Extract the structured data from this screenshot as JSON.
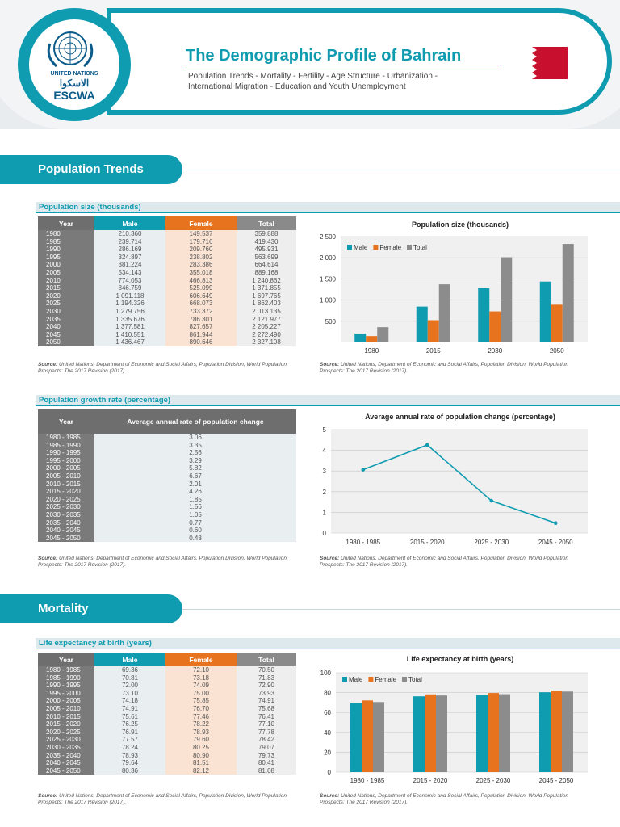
{
  "header": {
    "title": "The Demographic Profile of Bahrain",
    "subtitle": "Population Trends - Mortality - Fertility - Age Structure - Urbanization - International Migration - Education and Youth Unemployment",
    "org_line1": "UNITED NATIONS",
    "org_arabic": "الاسكوا",
    "org_name": "ESCWA"
  },
  "sections": {
    "population_trends": "Population Trends",
    "mortality": "Mortality"
  },
  "source": {
    "label": "Source:",
    "text": "United Nations, Department of Economic and Social Affairs, Population Division, World Population Prospects: The 2017 Revision (2017)."
  },
  "pop_size_table": {
    "title": "Population size (thousands)",
    "headers": [
      "Year",
      "Male",
      "Female",
      "Total"
    ],
    "rows": [
      [
        "1980",
        "210.360",
        "149.537",
        "359.888"
      ],
      [
        "1985",
        "239.714",
        "179.716",
        "419.430"
      ],
      [
        "1990",
        "286.169",
        "209.760",
        "495.931"
      ],
      [
        "1995",
        "324.897",
        "238.802",
        "563.699"
      ],
      [
        "2000",
        "381.224",
        "283.386",
        "664.614"
      ],
      [
        "2005",
        "534.143",
        "355.018",
        "889.168"
      ],
      [
        "2010",
        "774.053",
        "466.813",
        "1 240.862"
      ],
      [
        "2015",
        "846.759",
        "525.099",
        "1 371.855"
      ],
      [
        "2020",
        "1 091.118",
        "606.649",
        "1 697.765"
      ],
      [
        "2025",
        "1 194.326",
        "668.073",
        "1 862.403"
      ],
      [
        "2030",
        "1 279.756",
        "733.372",
        "2 013.135"
      ],
      [
        "2035",
        "1 335.676",
        "786.301",
        "2 121.977"
      ],
      [
        "2040",
        "1 377.581",
        "827.657",
        "2 205.227"
      ],
      [
        "2045",
        "1 410.551",
        "861.944",
        "2 272.490"
      ],
      [
        "2050",
        "1 436.467",
        "890.646",
        "2 327.108"
      ]
    ]
  },
  "growth_table": {
    "title": "Population growth rate (percentage)",
    "headers": [
      "Year",
      "Average annual rate of population change"
    ],
    "rows": [
      [
        "1980 - 1985",
        "3.06"
      ],
      [
        "1985 - 1990",
        "3.35"
      ],
      [
        "1990 - 1995",
        "2.56"
      ],
      [
        "1995 - 2000",
        "3.29"
      ],
      [
        "2000 - 2005",
        "5.82"
      ],
      [
        "2005 - 2010",
        "6.67"
      ],
      [
        "2010 - 2015",
        "2.01"
      ],
      [
        "2015 - 2020",
        "4.26"
      ],
      [
        "2020 - 2025",
        "1.85"
      ],
      [
        "2025 - 2030",
        "1.56"
      ],
      [
        "2030 - 2035",
        "1.05"
      ],
      [
        "2035 - 2040",
        "0.77"
      ],
      [
        "2040 - 2045",
        "0.60"
      ],
      [
        "2045 - 2050",
        "0.48"
      ]
    ]
  },
  "life_table": {
    "title": "Life expectancy at birth (years)",
    "headers": [
      "Year",
      "Male",
      "Female",
      "Total"
    ],
    "rows": [
      [
        "1980 - 1985",
        "69.36",
        "72.10",
        "70.50"
      ],
      [
        "1985 - 1990",
        "70.81",
        "73.18",
        "71.83"
      ],
      [
        "1990 - 1995",
        "72.00",
        "74.09",
        "72.90"
      ],
      [
        "1995 - 2000",
        "73.10",
        "75.00",
        "73.93"
      ],
      [
        "2000 - 2005",
        "74.18",
        "75.85",
        "74.91"
      ],
      [
        "2005 - 2010",
        "74.91",
        "76.70",
        "75.68"
      ],
      [
        "2010 - 2015",
        "75.61",
        "77.46",
        "76.41"
      ],
      [
        "2015 - 2020",
        "76.25",
        "78.22",
        "77.10"
      ],
      [
        "2020 - 2025",
        "76.91",
        "78.93",
        "77.78"
      ],
      [
        "2025 - 2030",
        "77.57",
        "79.60",
        "78.42"
      ],
      [
        "2030 - 2035",
        "78.24",
        "80.25",
        "79.07"
      ],
      [
        "2035 - 2040",
        "78.93",
        "80.90",
        "79.73"
      ],
      [
        "2040 - 2045",
        "79.64",
        "81.51",
        "80.41"
      ],
      [
        "2045 - 2050",
        "80.36",
        "82.12",
        "81.08"
      ]
    ]
  },
  "colors": {
    "male": "#0f9bb0",
    "female": "#e8731f",
    "total": "#8c8c8c",
    "accent": "#0f9bb0"
  },
  "chart_data": [
    {
      "type": "bar",
      "title": "Population size (thousands)",
      "categories": [
        "1980",
        "2015",
        "2030",
        "2050"
      ],
      "series": [
        {
          "name": "Male",
          "values": [
            210.36,
            846.759,
            1279.756,
            1436.467
          ]
        },
        {
          "name": "Female",
          "values": [
            149.537,
            525.099,
            733.372,
            890.646
          ]
        },
        {
          "name": "Total",
          "values": [
            359.888,
            1371.855,
            2013.135,
            2327.108
          ]
        }
      ],
      "ylim": [
        0,
        2500
      ],
      "yticks": [
        "500",
        "1 000",
        "1 500",
        "2 000",
        "2 500"
      ],
      "legend": "top-left",
      "grid": true
    },
    {
      "type": "line",
      "title": "Average annual rate of population change (percentage)",
      "categories": [
        "1980 - 1985",
        "2015 - 2020",
        "2025 - 2030",
        "2045 - 2050"
      ],
      "series": [
        {
          "values": [
            3.06,
            4.26,
            1.56,
            0.48
          ]
        }
      ],
      "ylim": [
        0,
        5
      ],
      "yticks": [
        "0",
        "1",
        "2",
        "3",
        "4",
        "5"
      ],
      "grid": true
    },
    {
      "type": "bar",
      "title": "Life expectancy at birth (years)",
      "categories": [
        "1980 - 1985",
        "2015 - 2020",
        "2025 - 2030",
        "2045 - 2050"
      ],
      "series": [
        {
          "name": "Male",
          "values": [
            69.36,
            76.25,
            77.57,
            80.36
          ]
        },
        {
          "name": "Female",
          "values": [
            72.1,
            78.22,
            79.6,
            82.12
          ]
        },
        {
          "name": "Total",
          "values": [
            70.5,
            77.1,
            78.42,
            81.08
          ]
        }
      ],
      "ylim": [
        0,
        100
      ],
      "yticks": [
        "0",
        "20",
        "40",
        "60",
        "80",
        "100"
      ],
      "legend": "top-left",
      "grid": true
    }
  ]
}
